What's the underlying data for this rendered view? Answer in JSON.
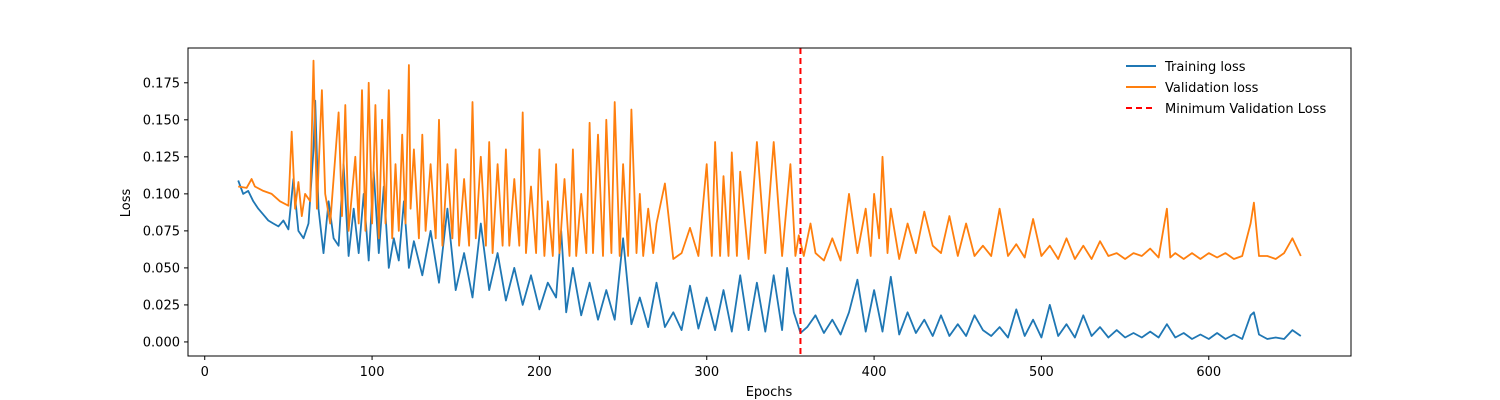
{
  "chart_data": {
    "type": "line",
    "title": "",
    "xlabel": "Epochs",
    "ylabel": "Loss",
    "xlim": [
      -10,
      685
    ],
    "ylim": [
      -0.0095,
      0.1985
    ],
    "x_ticks": [
      0,
      100,
      200,
      300,
      400,
      500,
      600
    ],
    "y_ticks": [
      0.0,
      0.025,
      0.05,
      0.075,
      0.1,
      0.125,
      0.15,
      0.175
    ],
    "y_tick_labels": [
      "0.000",
      "0.025",
      "0.050",
      "0.075",
      "0.100",
      "0.125",
      "0.150",
      "0.175"
    ],
    "grid": false,
    "legend_position": "top-right",
    "series": [
      {
        "name": "Training loss",
        "color": "#1f77b4",
        "style": "solid",
        "x": [
          20,
          23,
          26,
          29,
          32,
          35,
          38,
          41,
          44,
          47,
          50,
          53,
          56,
          59,
          62,
          65,
          66,
          68,
          71,
          74,
          77,
          80,
          83,
          86,
          89,
          92,
          95,
          98,
          101,
          104,
          107,
          110,
          113,
          116,
          119,
          122,
          125,
          130,
          135,
          140,
          145,
          150,
          155,
          160,
          165,
          170,
          175,
          180,
          185,
          190,
          195,
          200,
          205,
          210,
          213,
          216,
          220,
          225,
          230,
          235,
          240,
          245,
          250,
          255,
          260,
          265,
          270,
          275,
          280,
          285,
          290,
          295,
          300,
          305,
          310,
          315,
          320,
          325,
          330,
          335,
          340,
          345,
          348,
          352,
          356,
          360,
          365,
          370,
          375,
          380,
          385,
          390,
          395,
          400,
          405,
          410,
          415,
          420,
          425,
          430,
          435,
          440,
          445,
          450,
          455,
          460,
          465,
          470,
          475,
          480,
          485,
          490,
          495,
          500,
          505,
          510,
          515,
          520,
          525,
          530,
          535,
          540,
          545,
          550,
          555,
          560,
          565,
          570,
          575,
          580,
          585,
          590,
          595,
          600,
          605,
          610,
          615,
          620,
          625,
          627,
          630,
          635,
          640,
          645,
          650,
          655
        ],
        "values": [
          0.109,
          0.1,
          0.102,
          0.095,
          0.09,
          0.086,
          0.082,
          0.08,
          0.078,
          0.082,
          0.076,
          0.11,
          0.075,
          0.07,
          0.08,
          0.13,
          0.163,
          0.09,
          0.06,
          0.095,
          0.07,
          0.065,
          0.12,
          0.058,
          0.09,
          0.06,
          0.1,
          0.055,
          0.115,
          0.06,
          0.105,
          0.05,
          0.07,
          0.055,
          0.095,
          0.05,
          0.068,
          0.045,
          0.075,
          0.04,
          0.09,
          0.035,
          0.06,
          0.03,
          0.08,
          0.035,
          0.06,
          0.028,
          0.05,
          0.025,
          0.045,
          0.022,
          0.04,
          0.03,
          0.075,
          0.02,
          0.05,
          0.018,
          0.04,
          0.015,
          0.035,
          0.015,
          0.07,
          0.012,
          0.03,
          0.01,
          0.04,
          0.01,
          0.02,
          0.008,
          0.038,
          0.009,
          0.03,
          0.008,
          0.035,
          0.007,
          0.045,
          0.008,
          0.04,
          0.007,
          0.045,
          0.008,
          0.05,
          0.02,
          0.006,
          0.01,
          0.018,
          0.006,
          0.015,
          0.005,
          0.02,
          0.042,
          0.007,
          0.035,
          0.007,
          0.044,
          0.005,
          0.02,
          0.006,
          0.015,
          0.004,
          0.018,
          0.004,
          0.012,
          0.004,
          0.018,
          0.008,
          0.004,
          0.01,
          0.003,
          0.022,
          0.004,
          0.015,
          0.003,
          0.025,
          0.004,
          0.012,
          0.003,
          0.018,
          0.004,
          0.01,
          0.003,
          0.008,
          0.003,
          0.006,
          0.003,
          0.007,
          0.003,
          0.012,
          0.003,
          0.006,
          0.002,
          0.005,
          0.002,
          0.006,
          0.002,
          0.005,
          0.002,
          0.018,
          0.02,
          0.005,
          0.002,
          0.003,
          0.002,
          0.008,
          0.004
        ]
      },
      {
        "name": "Validation loss",
        "color": "#ff7f0e",
        "style": "solid",
        "x": [
          20,
          25,
          28,
          30,
          35,
          40,
          45,
          50,
          52,
          54,
          56,
          58,
          60,
          63,
          65,
          67,
          70,
          72,
          75,
          80,
          82,
          84,
          86,
          90,
          92,
          94,
          96,
          98,
          100,
          102,
          104,
          106,
          108,
          110,
          112,
          114,
          116,
          118,
          120,
          122,
          123,
          125,
          128,
          130,
          132,
          135,
          138,
          140,
          142,
          145,
          148,
          150,
          152,
          155,
          158,
          160,
          162,
          165,
          168,
          170,
          172,
          175,
          178,
          180,
          182,
          185,
          188,
          190,
          192,
          195,
          198,
          200,
          203,
          205,
          208,
          210,
          212,
          215,
          218,
          220,
          222,
          225,
          228,
          230,
          232,
          235,
          238,
          240,
          243,
          245,
          248,
          250,
          253,
          255,
          258,
          260,
          262,
          265,
          268,
          270,
          275,
          280,
          285,
          290,
          295,
          300,
          303,
          305,
          308,
          310,
          313,
          315,
          318,
          320,
          325,
          330,
          335,
          340,
          345,
          350,
          353,
          355,
          358,
          362,
          365,
          370,
          375,
          380,
          385,
          390,
          395,
          398,
          400,
          403,
          405,
          408,
          410,
          415,
          420,
          425,
          430,
          435,
          440,
          445,
          450,
          455,
          460,
          465,
          470,
          475,
          480,
          485,
          490,
          495,
          500,
          505,
          510,
          515,
          520,
          525,
          530,
          535,
          540,
          545,
          550,
          555,
          560,
          565,
          570,
          575,
          577,
          580,
          585,
          590,
          595,
          600,
          605,
          610,
          615,
          620,
          625,
          627,
          630,
          635,
          640,
          645,
          650,
          655
        ],
        "values": [
          0.105,
          0.104,
          0.11,
          0.105,
          0.102,
          0.1,
          0.095,
          0.092,
          0.142,
          0.09,
          0.108,
          0.085,
          0.1,
          0.095,
          0.19,
          0.09,
          0.17,
          0.1,
          0.08,
          0.155,
          0.085,
          0.16,
          0.075,
          0.125,
          0.08,
          0.17,
          0.075,
          0.175,
          0.08,
          0.16,
          0.07,
          0.15,
          0.08,
          0.17,
          0.07,
          0.12,
          0.075,
          0.14,
          0.08,
          0.187,
          0.09,
          0.13,
          0.07,
          0.14,
          0.075,
          0.12,
          0.07,
          0.15,
          0.065,
          0.12,
          0.07,
          0.13,
          0.065,
          0.11,
          0.065,
          0.162,
          0.07,
          0.125,
          0.065,
          0.135,
          0.06,
          0.12,
          0.065,
          0.13,
          0.065,
          0.11,
          0.065,
          0.155,
          0.06,
          0.105,
          0.06,
          0.13,
          0.058,
          0.095,
          0.058,
          0.12,
          0.06,
          0.11,
          0.058,
          0.13,
          0.058,
          0.1,
          0.06,
          0.148,
          0.06,
          0.14,
          0.058,
          0.15,
          0.06,
          0.162,
          0.058,
          0.12,
          0.058,
          0.157,
          0.06,
          0.1,
          0.058,
          0.09,
          0.06,
          0.08,
          0.107,
          0.056,
          0.06,
          0.077,
          0.058,
          0.12,
          0.058,
          0.135,
          0.058,
          0.112,
          0.058,
          0.128,
          0.058,
          0.115,
          0.056,
          0.135,
          0.06,
          0.135,
          0.058,
          0.12,
          0.058,
          0.072,
          0.058,
          0.08,
          0.06,
          0.055,
          0.07,
          0.055,
          0.1,
          0.06,
          0.09,
          0.058,
          0.1,
          0.07,
          0.125,
          0.06,
          0.09,
          0.056,
          0.08,
          0.06,
          0.088,
          0.065,
          0.06,
          0.085,
          0.058,
          0.08,
          0.058,
          0.065,
          0.058,
          0.09,
          0.058,
          0.066,
          0.057,
          0.083,
          0.058,
          0.065,
          0.056,
          0.07,
          0.056,
          0.065,
          0.056,
          0.068,
          0.058,
          0.06,
          0.056,
          0.06,
          0.058,
          0.063,
          0.057,
          0.09,
          0.057,
          0.06,
          0.056,
          0.06,
          0.056,
          0.06,
          0.057,
          0.06,
          0.056,
          0.058,
          0.08,
          0.094,
          0.058,
          0.058,
          0.056,
          0.06,
          0.07,
          0.058
        ]
      },
      {
        "name": "Minimum Validation Loss",
        "color": "#ff0000",
        "style": "dashed",
        "vline_x": 356
      }
    ]
  }
}
